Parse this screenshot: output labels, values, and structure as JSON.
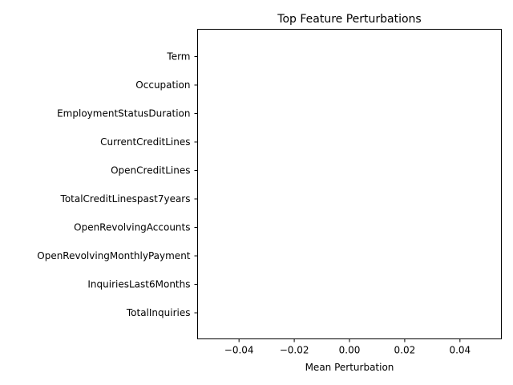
{
  "chart_data": {
    "type": "bar",
    "orientation": "horizontal",
    "title": "Top Feature Perturbations",
    "xlabel": "Mean Perturbation",
    "ylabel": "",
    "categories": [
      "Term",
      "Occupation",
      "EmploymentStatusDuration",
      "CurrentCreditLines",
      "OpenCreditLines",
      "TotalCreditLinespast7years",
      "OpenRevolvingAccounts",
      "OpenRevolvingMonthlyPayment",
      "InquiriesLast6Months",
      "TotalInquiries"
    ],
    "values": [
      0,
      0,
      0,
      0,
      0,
      0,
      0,
      0,
      0,
      0
    ],
    "xlim": [
      -0.055,
      0.055
    ],
    "xticks": [
      -0.04,
      -0.02,
      0.0,
      0.02,
      0.04
    ],
    "xtick_labels": [
      "−0.04",
      "−0.02",
      "0.00",
      "0.02",
      "0.04"
    ],
    "grid": false,
    "colors": {
      "bar": "#1f77b4",
      "axis": "#000000",
      "background": "#ffffff"
    }
  }
}
